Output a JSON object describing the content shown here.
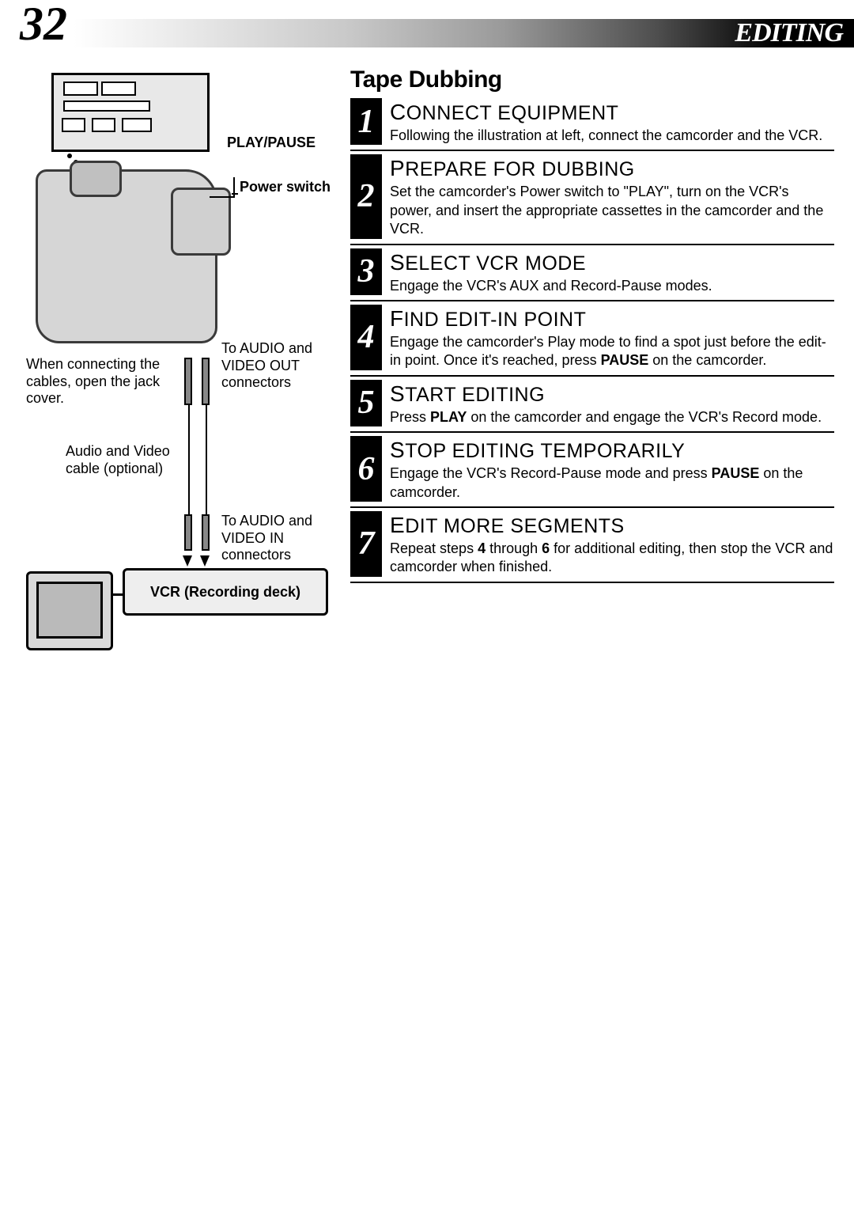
{
  "page_number": "32",
  "header_title": "EDITING",
  "section_title": "Tape Dubbing",
  "diagram": {
    "play_pause_label": "PLAY/PAUSE",
    "power_switch_label": "Power switch",
    "jack_cover_note": "When connecting the cables, open the jack cover.",
    "av_cable_label": "Audio and Video cable (optional)",
    "to_av_out": "To AUDIO and VIDEO OUT connectors",
    "to_av_in": "To AUDIO and VIDEO IN connectors",
    "vcr_label": "VCR (Recording deck)"
  },
  "steps": [
    {
      "num": "1",
      "title": "CONNECT EQUIPMENT",
      "text": "Following the illustration at left, connect the camcorder and the VCR."
    },
    {
      "num": "2",
      "title": "PREPARE FOR DUBBING",
      "text": "Set the camcorder's Power switch to \"PLAY\", turn on the VCR's power, and insert the appropriate cassettes in the camcorder and the VCR."
    },
    {
      "num": "3",
      "title": "SELECT VCR MODE",
      "text": "Engage the VCR's AUX and Record-Pause modes."
    },
    {
      "num": "4",
      "title": "FIND EDIT-IN POINT",
      "text_html": "Engage the camcorder's Play mode to find a spot just before the edit-in point. Once it's reached, press <b>PAUSE</b> on the camcorder."
    },
    {
      "num": "5",
      "title": "START EDITING",
      "text_html": "Press <b>PLAY</b> on the camcorder and engage the VCR's Record mode."
    },
    {
      "num": "6",
      "title": "STOP EDITING TEMPORARILY",
      "text_html": "Engage the VCR's Record-Pause mode and press <b>PAUSE</b> on the camcorder."
    },
    {
      "num": "7",
      "title": "EDIT MORE SEGMENTS",
      "text_html": "Repeat steps <b>4</b> through <b>6</b> for additional editing, then stop the VCR and camcorder when finished."
    }
  ],
  "colors": {
    "black": "#000000",
    "white": "#ffffff",
    "diagram_gray": "#d6d6d6"
  },
  "fonts": {
    "page_number": {
      "family": "Georgia serif italic",
      "size_pt": 45,
      "weight": "bold"
    },
    "header_title": {
      "family": "Georgia serif italic",
      "size_pt": 26,
      "weight": "900"
    },
    "section_title": {
      "family": "Arial Black",
      "size_pt": 22,
      "weight": "900"
    },
    "step_title": {
      "size_pt": 19,
      "variant": "small-caps"
    },
    "step_num": {
      "family": "Georgia serif italic",
      "size_pt": 32,
      "weight": "bold",
      "color": "#ffffff",
      "bg": "#000000"
    },
    "body": {
      "size_pt": 13.5
    },
    "callout": {
      "size_pt": 13.5
    }
  }
}
